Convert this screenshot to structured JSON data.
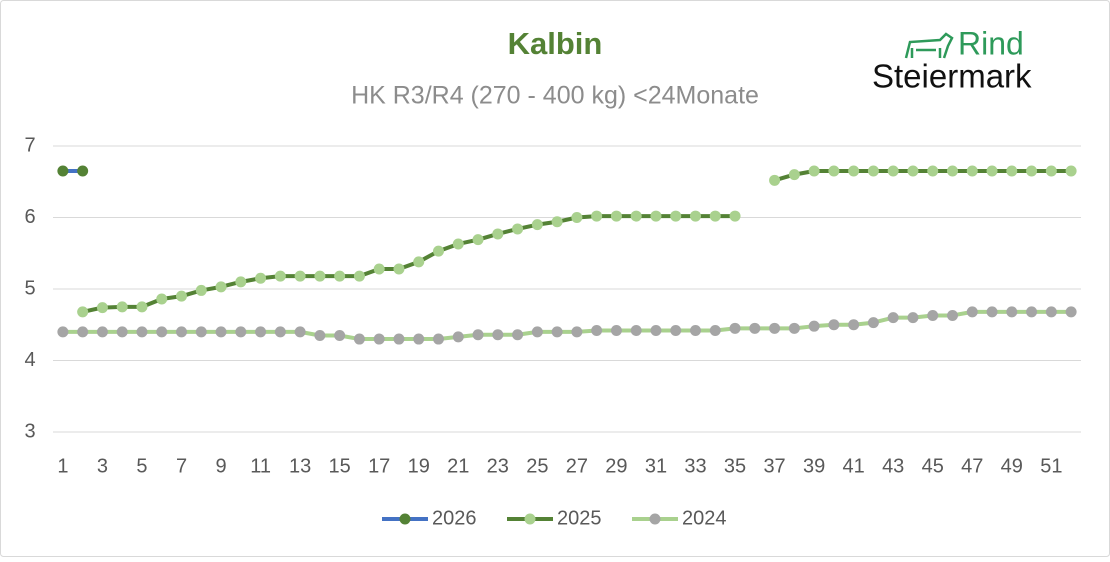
{
  "chart_data": {
    "type": "line",
    "title": "Kalbin",
    "subtitle": "HK R3/R4 (270 - 400 kg) <24Monate",
    "x": [
      1,
      2,
      3,
      4,
      5,
      6,
      7,
      8,
      9,
      10,
      11,
      12,
      13,
      14,
      15,
      16,
      17,
      18,
      19,
      20,
      21,
      22,
      23,
      24,
      25,
      26,
      27,
      28,
      29,
      30,
      31,
      32,
      33,
      34,
      35,
      36,
      37,
      38,
      39,
      40,
      41,
      42,
      43,
      44,
      45,
      46,
      47,
      48,
      49,
      50,
      51,
      52
    ],
    "xlim": [
      0.5,
      52.5
    ],
    "xticks": [
      1,
      3,
      5,
      7,
      9,
      11,
      13,
      15,
      17,
      19,
      21,
      23,
      25,
      27,
      29,
      31,
      33,
      35,
      37,
      39,
      41,
      43,
      45,
      47,
      49,
      51
    ],
    "ylim": [
      3,
      7
    ],
    "yticks": [
      3,
      4,
      5,
      6,
      7
    ],
    "grid": true,
    "legend": "bottom",
    "series": [
      {
        "name": "2026",
        "color": "#4472c4",
        "marker_color": "#548235",
        "values": [
          6.65,
          6.65,
          null,
          null,
          null,
          null,
          null,
          null,
          null,
          null,
          null,
          null,
          null,
          null,
          null,
          null,
          null,
          null,
          null,
          null,
          null,
          null,
          null,
          null,
          null,
          null,
          null,
          null,
          null,
          null,
          null,
          null,
          null,
          null,
          null,
          null,
          null,
          null,
          null,
          null,
          null,
          null,
          null,
          null,
          null,
          null,
          null,
          null,
          null,
          null,
          null,
          null
        ]
      },
      {
        "name": "2025",
        "color": "#548235",
        "marker_color": "#a9d18e",
        "values": [
          null,
          4.68,
          4.74,
          4.75,
          4.75,
          4.86,
          4.9,
          4.98,
          5.03,
          5.1,
          5.15,
          5.18,
          5.18,
          5.18,
          5.18,
          5.18,
          5.28,
          5.28,
          5.38,
          5.53,
          5.63,
          5.69,
          5.77,
          5.84,
          5.9,
          5.94,
          6.0,
          6.02,
          6.02,
          6.02,
          6.02,
          6.02,
          6.02,
          6.02,
          6.02,
          null,
          6.52,
          6.6,
          6.65,
          6.65,
          6.65,
          6.65,
          6.65,
          6.65,
          6.65,
          6.65,
          6.65,
          6.65,
          6.65,
          6.65,
          6.65,
          6.65
        ]
      },
      {
        "name": "2024",
        "color": "#a9d18e",
        "marker_color": "#a5a5a5",
        "values": [
          4.4,
          4.4,
          4.4,
          4.4,
          4.4,
          4.4,
          4.4,
          4.4,
          4.4,
          4.4,
          4.4,
          4.4,
          4.4,
          4.35,
          4.35,
          4.3,
          4.3,
          4.3,
          4.3,
          4.3,
          4.33,
          4.36,
          4.36,
          4.36,
          4.4,
          4.4,
          4.4,
          4.42,
          4.42,
          4.42,
          4.42,
          4.42,
          4.42,
          4.42,
          4.45,
          4.45,
          4.45,
          4.45,
          4.48,
          4.5,
          4.5,
          4.53,
          4.6,
          4.6,
          4.63,
          4.63,
          4.68,
          4.68,
          4.68,
          4.68,
          4.68,
          4.68
        ]
      }
    ]
  },
  "logo": {
    "top": "Rind",
    "bottom": "Steiermark"
  }
}
